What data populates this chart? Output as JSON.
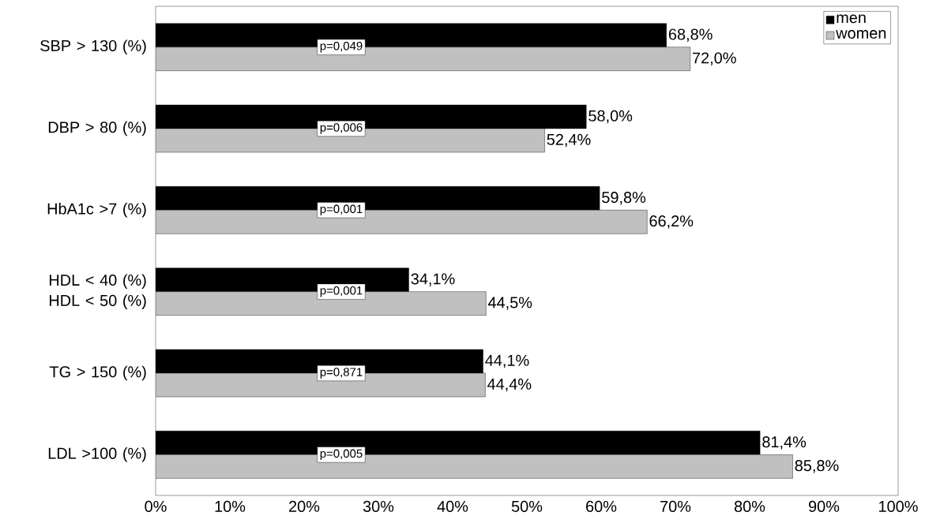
{
  "chart_data": {
    "type": "bar",
    "orientation": "horizontal",
    "categories": [
      "SBP > 130 (%)",
      "DBP > 80 (%)",
      "HbA1c >7 (%)",
      "HDL < 40 (%) HDL < 50 (%)",
      "TG > 150 (%)",
      "LDL >100 (%)"
    ],
    "series": [
      {
        "name": "men",
        "color": "#000000",
        "values": [
          68.8,
          58.0,
          59.8,
          34.1,
          44.1,
          81.4
        ],
        "value_labels": [
          "68,8%",
          "58,0%",
          "59,8%",
          "34,1%",
          "44,1%",
          "81,4%"
        ]
      },
      {
        "name": "women",
        "color": "#c0c0c0",
        "values": [
          72.0,
          52.4,
          66.2,
          44.5,
          44.4,
          85.8
        ],
        "value_labels": [
          "72,0%",
          "52,4%",
          "66,2%",
          "44,5%",
          "44,4%",
          "85,8%"
        ]
      }
    ],
    "xlim": [
      0,
      100
    ],
    "xticks": [
      {
        "value": 0,
        "label": "0%"
      },
      {
        "value": 10,
        "label": "10%"
      },
      {
        "value": 20,
        "label": "20%"
      },
      {
        "value": 30,
        "label": "30%"
      },
      {
        "value": 40,
        "label": "40%"
      },
      {
        "value": 50,
        "label": "50%"
      },
      {
        "value": 60,
        "label": "60%"
      },
      {
        "value": 70,
        "label": "70%"
      },
      {
        "value": 80,
        "label": "80%"
      },
      {
        "value": 90,
        "label": "90%"
      },
      {
        "value": 100,
        "label": "100%"
      }
    ],
    "annotations": [
      "p=0,049",
      "p=0,006",
      "p=0,001",
      "p=0,001",
      "p=0,871",
      "p=0,005"
    ],
    "grid": false,
    "legend": "top right"
  }
}
